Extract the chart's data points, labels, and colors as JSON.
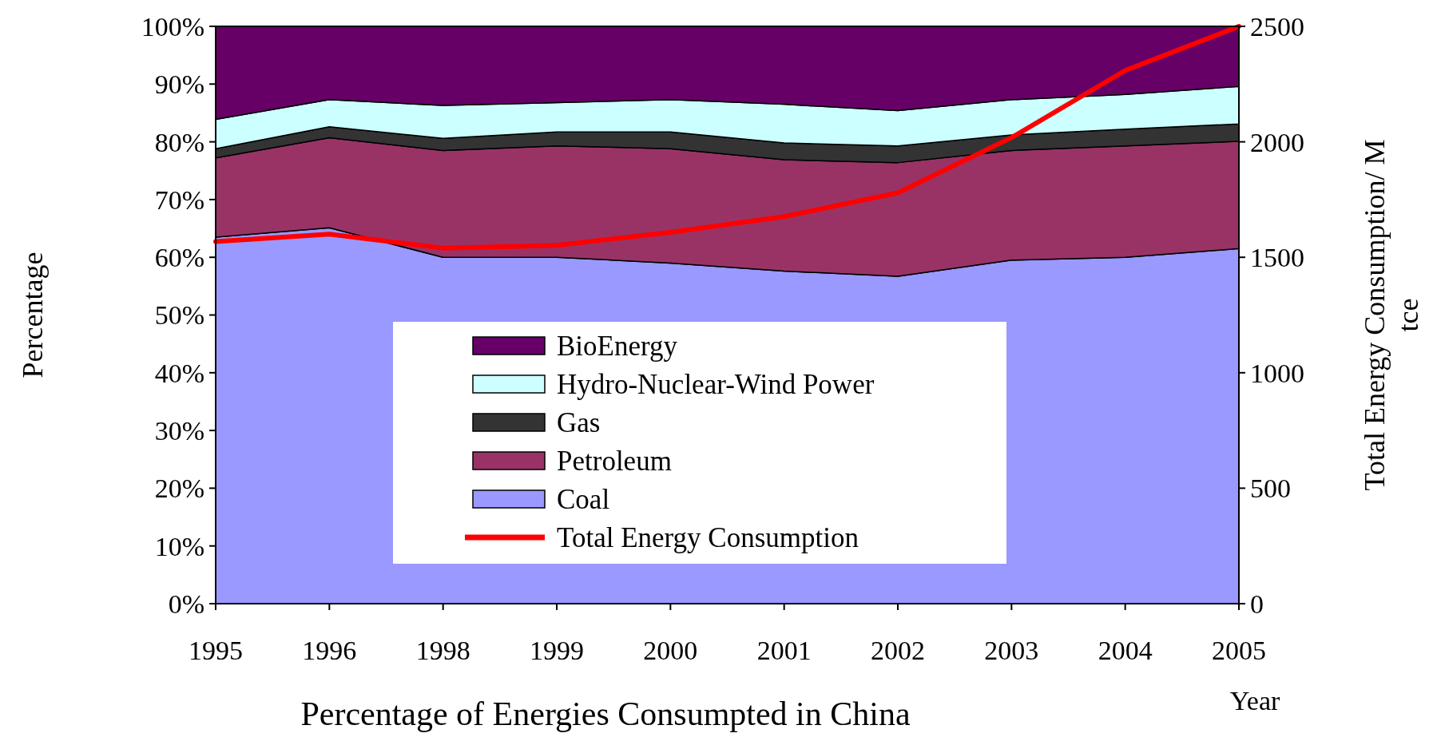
{
  "chart_data": {
    "type": "area",
    "stacked": true,
    "title": "Percentage of Energies Consumpted in China",
    "xlabel": "Year",
    "ylabel": "Percentage",
    "y2label": "Total Energy Consumption/ M tce",
    "categories": [
      "1995",
      "1996",
      "1998",
      "1999",
      "2000",
      "2001",
      "2002",
      "2003",
      "2004",
      "2005"
    ],
    "series": [
      {
        "name": "Coal",
        "color": "#9999ff",
        "values": [
          63.5,
          65.1,
          60,
          60,
          59,
          57.6,
          56.7,
          59.5,
          60,
          61.5
        ]
      },
      {
        "name": "Petroleum",
        "color": "#993366",
        "values": [
          13.7,
          15.6,
          18.5,
          19.3,
          19.8,
          19.3,
          19.7,
          19,
          19.3,
          18.6
        ]
      },
      {
        "name": "Gas",
        "color": "#333333",
        "values": [
          1.6,
          1.9,
          2.1,
          2.4,
          2.9,
          2.9,
          2.9,
          2.7,
          2.9,
          3
        ]
      },
      {
        "name": "Hydro-Nuclear-Wind Power",
        "color": "#ccffff",
        "values": [
          5.1,
          4.7,
          5.7,
          5.1,
          5.6,
          6.7,
          6.1,
          6.1,
          6,
          6.5
        ]
      },
      {
        "name": "BioEnergy",
        "color": "#660066",
        "values": [
          16.1,
          12.7,
          13.7,
          13.2,
          12.7,
          13.5,
          14.6,
          12.7,
          11.8,
          10.4
        ]
      },
      {
        "name": "Total Energy Consumption",
        "type": "line",
        "axis": "y2",
        "color": "#ff0000",
        "values": [
          1568,
          1600,
          1540,
          1552,
          1608,
          1676,
          1779,
          2018,
          2309,
          2500
        ]
      }
    ],
    "ylim": [
      0,
      100
    ],
    "yticks": [
      {
        "value": 0,
        "label": "0%"
      },
      {
        "value": 10,
        "label": "10%"
      },
      {
        "value": 20,
        "label": "20%"
      },
      {
        "value": 30,
        "label": "30%"
      },
      {
        "value": 40,
        "label": "40%"
      },
      {
        "value": 50,
        "label": "50%"
      },
      {
        "value": 60,
        "label": "60%"
      },
      {
        "value": 70,
        "label": "70%"
      },
      {
        "value": 80,
        "label": "80%"
      },
      {
        "value": 90,
        "label": "90%"
      },
      {
        "value": 100,
        "label": "100%"
      }
    ],
    "y2lim": [
      0,
      2500
    ],
    "y2ticks": [
      0,
      500,
      1000,
      1500,
      2000,
      2500
    ],
    "legend": "bottom",
    "grid": false
  }
}
